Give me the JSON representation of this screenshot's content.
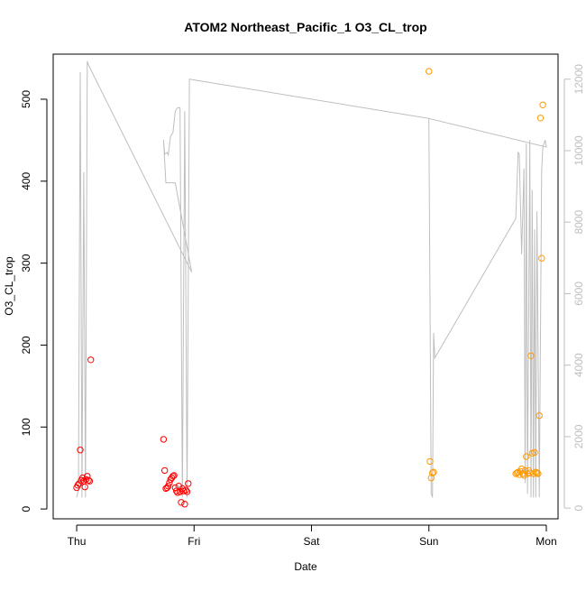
{
  "chart_data": {
    "type": "scatter",
    "title": "ATOM2 Northeast_Pacific_1 O3_CL_trop",
    "xlabel": "Date",
    "ylabel": "O3_CL_trop",
    "x_ticks": [
      "Thu",
      "Fri",
      "Sat",
      "Sun",
      "Mon"
    ],
    "xlim": [
      -0.2,
      4.1
    ],
    "ylim": [
      -12,
      555
    ],
    "y_ticks": [
      0,
      100,
      200,
      300,
      400,
      500
    ],
    "y2lim": [
      -300,
      12700
    ],
    "y2_ticks": [
      0,
      2000,
      4000,
      6000,
      8000,
      10000,
      12000
    ],
    "grid": false,
    "colors": {
      "red": "#ff0000",
      "orange": "#ff9900",
      "gray": "#bebebe"
    },
    "series": [
      {
        "color": "red",
        "marker": "open-circle",
        "points": [
          [
            0.0,
            26
          ],
          [
            0.01,
            29
          ],
          [
            0.02,
            31
          ],
          [
            0.03,
            72
          ],
          [
            0.04,
            35
          ],
          [
            0.05,
            38
          ],
          [
            0.06,
            34
          ],
          [
            0.07,
            27
          ],
          [
            0.08,
            36
          ],
          [
            0.09,
            40
          ],
          [
            0.1,
            35
          ],
          [
            0.11,
            34
          ],
          [
            0.12,
            182
          ],
          [
            0.74,
            85
          ],
          [
            0.75,
            47
          ],
          [
            0.76,
            25
          ],
          [
            0.77,
            26
          ],
          [
            0.78,
            28
          ],
          [
            0.79,
            32
          ],
          [
            0.8,
            36
          ],
          [
            0.81,
            38
          ],
          [
            0.82,
            40
          ],
          [
            0.83,
            41
          ],
          [
            0.84,
            26
          ],
          [
            0.85,
            22
          ],
          [
            0.86,
            20
          ],
          [
            0.87,
            28
          ],
          [
            0.88,
            21
          ],
          [
            0.89,
            8
          ],
          [
            0.9,
            25
          ],
          [
            0.91,
            22
          ],
          [
            0.92,
            6
          ],
          [
            0.93,
            23
          ],
          [
            0.94,
            21
          ],
          [
            0.95,
            31
          ]
        ]
      },
      {
        "color": "orange",
        "marker": "open-circle",
        "points": [
          [
            3.0,
            534
          ],
          [
            3.01,
            58
          ],
          [
            3.02,
            38
          ],
          [
            3.03,
            44
          ],
          [
            3.04,
            45
          ],
          [
            3.74,
            43
          ],
          [
            3.75,
            44
          ],
          [
            3.76,
            45
          ],
          [
            3.77,
            42
          ],
          [
            3.78,
            46
          ],
          [
            3.79,
            49
          ],
          [
            3.8,
            43
          ],
          [
            3.81,
            41
          ],
          [
            3.82,
            47
          ],
          [
            3.83,
            64
          ],
          [
            3.84,
            43
          ],
          [
            3.85,
            47
          ],
          [
            3.86,
            44
          ],
          [
            3.87,
            187
          ],
          [
            3.88,
            68
          ],
          [
            3.89,
            43
          ],
          [
            3.9,
            69
          ],
          [
            3.91,
            45
          ],
          [
            3.92,
            44
          ],
          [
            3.93,
            43
          ],
          [
            3.94,
            114
          ],
          [
            3.95,
            477
          ],
          [
            3.96,
            306
          ],
          [
            3.97,
            493
          ]
        ]
      },
      {
        "color": "gray",
        "marker": "line",
        "axis": "right",
        "points": [
          [
            0.0,
            300
          ],
          [
            0.015,
            500
          ],
          [
            0.03,
            12200
          ],
          [
            0.045,
            300
          ],
          [
            0.06,
            9400
          ],
          [
            0.075,
            300
          ],
          [
            0.09,
            12500
          ],
          [
            0.1,
            12400
          ],
          [
            0.98,
            6600
          ],
          [
            0.84,
            9100
          ],
          [
            0.8,
            9100
          ],
          [
            0.76,
            9100
          ],
          [
            0.74,
            10300
          ],
          [
            0.75,
            9900
          ],
          [
            0.77,
            9950
          ],
          [
            0.78,
            9880
          ],
          [
            0.8,
            10400
          ],
          [
            0.82,
            10500
          ],
          [
            0.84,
            11100
          ],
          [
            0.86,
            11200
          ],
          [
            0.88,
            11200
          ],
          [
            0.9,
            300
          ],
          [
            0.92,
            11100
          ],
          [
            0.94,
            300
          ],
          [
            0.96,
            12000
          ],
          [
            3.0,
            10900
          ],
          [
            3.02,
            400
          ],
          [
            3.03,
            300
          ],
          [
            3.04,
            4900
          ],
          [
            3.05,
            4200
          ],
          [
            3.74,
            8100
          ],
          [
            3.76,
            9950
          ],
          [
            3.77,
            9900
          ],
          [
            3.79,
            7100
          ],
          [
            3.81,
            9500
          ],
          [
            3.82,
            700
          ],
          [
            3.83,
            10200
          ],
          [
            3.84,
            400
          ],
          [
            3.86,
            10300
          ],
          [
            3.87,
            300
          ],
          [
            3.88,
            8900
          ],
          [
            3.89,
            300
          ],
          [
            3.9,
            7800
          ],
          [
            3.91,
            300
          ],
          [
            3.92,
            8300
          ],
          [
            3.94,
            300
          ],
          [
            3.96,
            9400
          ],
          [
            3.97,
            10100
          ],
          [
            3.99,
            10300
          ],
          [
            4.0,
            10100
          ],
          [
            3.0,
            10900
          ]
        ]
      }
    ]
  }
}
